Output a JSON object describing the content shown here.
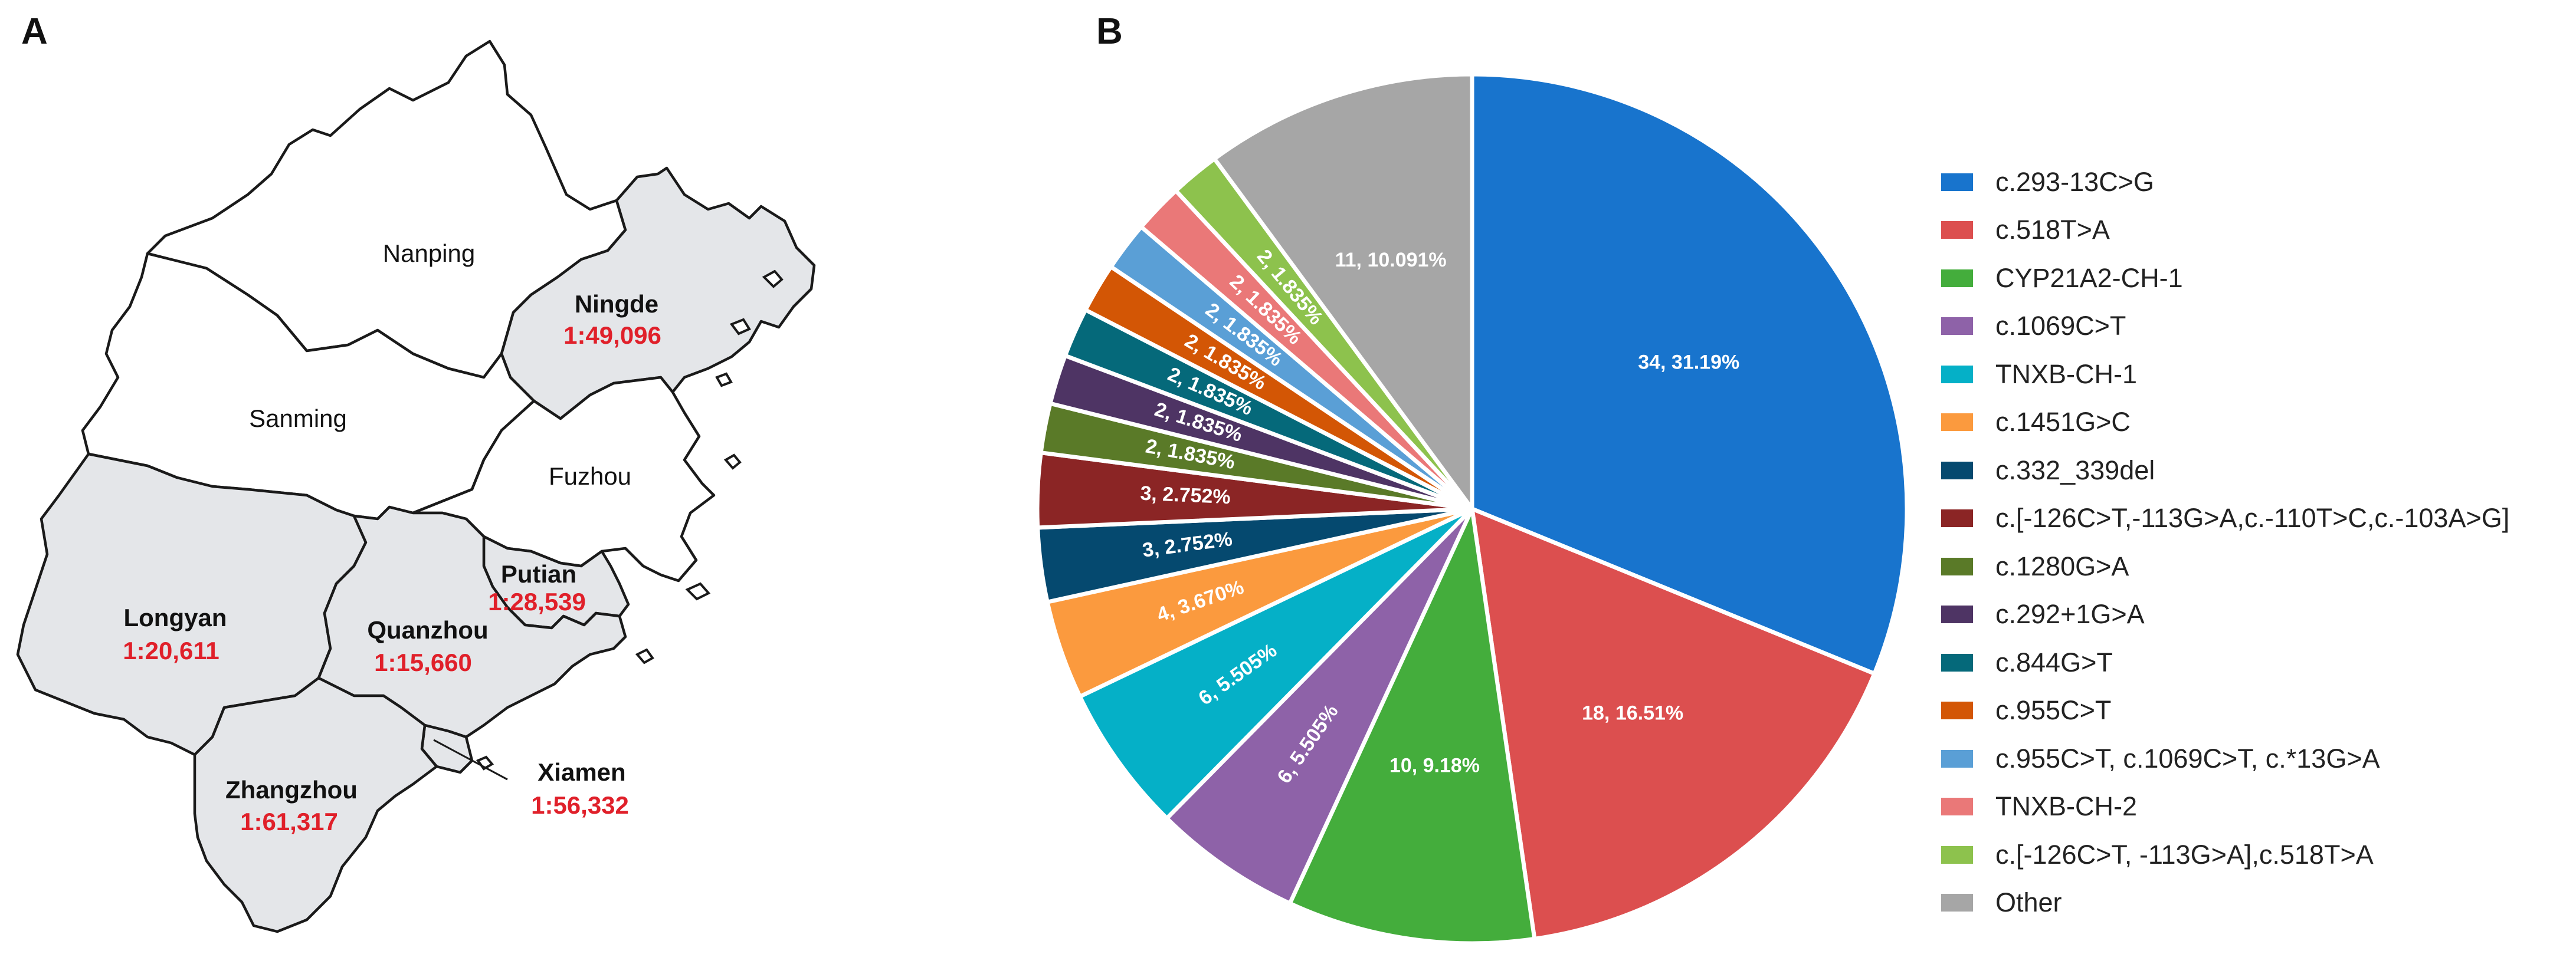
{
  "panels": {
    "a_label": "A",
    "b_label": "B"
  },
  "map": {
    "regions": [
      {
        "name": "Nanping",
        "ratio": null,
        "highlighted": false
      },
      {
        "name": "Ningde",
        "ratio": "1:49,096",
        "highlighted": true
      },
      {
        "name": "Sanming",
        "ratio": null,
        "highlighted": false
      },
      {
        "name": "Fuzhou",
        "ratio": null,
        "highlighted": false
      },
      {
        "name": "Putian",
        "ratio": "1:28,539",
        "highlighted": true
      },
      {
        "name": "Longyan",
        "ratio": "1:20,611",
        "highlighted": true
      },
      {
        "name": "Quanzhou",
        "ratio": "1:15,660",
        "highlighted": true
      },
      {
        "name": "Xiamen",
        "ratio": "1:56,332",
        "highlighted": true
      },
      {
        "name": "Zhangzhou",
        "ratio": "1:61,317",
        "highlighted": true
      }
    ],
    "colors": {
      "highlight": "#e4e6e9",
      "plain": "#ffffff",
      "border": "#1a1a1a",
      "ratio_text": "#e0202a"
    }
  },
  "chart_data": {
    "type": "pie",
    "title": "",
    "start": "12 o'clock, clockwise",
    "slices": [
      {
        "name": "c.293-13C>G",
        "count": 34,
        "label": "34, 31.19%",
        "color": "#1874cd"
      },
      {
        "name": "c.518T>A",
        "count": 18,
        "label": "18, 16.51%",
        "color": "#dc4f4f"
      },
      {
        "name": "CYP21A2-CH-1",
        "count": 10,
        "label": "10, 9.18%",
        "color": "#44ad3c"
      },
      {
        "name": "c.1069C>T",
        "count": 6,
        "label": "6, 5.505%",
        "color": "#8e62a8"
      },
      {
        "name": "TNXB-CH-1",
        "count": 6,
        "label": "6, 5.505%",
        "color": "#05b0c7"
      },
      {
        "name": "c.1451G>C",
        "count": 4,
        "label": "4, 3.670%",
        "color": "#fb9a3e"
      },
      {
        "name": "c.332_339del",
        "count": 3,
        "label": "3, 2.752%",
        "color": "#05496f"
      },
      {
        "name": "c.[-126C>T,-113G>A,c.-110T>C,c.-103A>G]",
        "count": 3,
        "label": "3, 2.752%",
        "color": "#8b2525"
      },
      {
        "name": "c.1280G>A",
        "count": 2,
        "label": "2, 1.835%",
        "color": "#5a7a28"
      },
      {
        "name": "c.292+1G>A",
        "count": 2,
        "label": "2, 1.835%",
        "color": "#4e3464"
      },
      {
        "name": "c.844G>T",
        "count": 2,
        "label": "2, 1.835%",
        "color": "#05697a"
      },
      {
        "name": "c.955C>T",
        "count": 2,
        "label": "2, 1.835%",
        "color": "#d35605"
      },
      {
        "name": "c.955C>T, c.1069C>T, c.*13G>A",
        "count": 2,
        "label": "2, 1.835%",
        "color": "#5a9fd6"
      },
      {
        "name": "TNXB-CH-2",
        "count": 2,
        "label": "2, 1.835%",
        "color": "#ea7878"
      },
      {
        "name": "c.[-126C>T, -113G>A],c.518T>A",
        "count": 2,
        "label": "2, 1.835%",
        "color": "#8dc24d"
      },
      {
        "name": "Other",
        "count": 11,
        "label": "11, 10.091%",
        "color": "#a6a6a6"
      }
    ]
  }
}
